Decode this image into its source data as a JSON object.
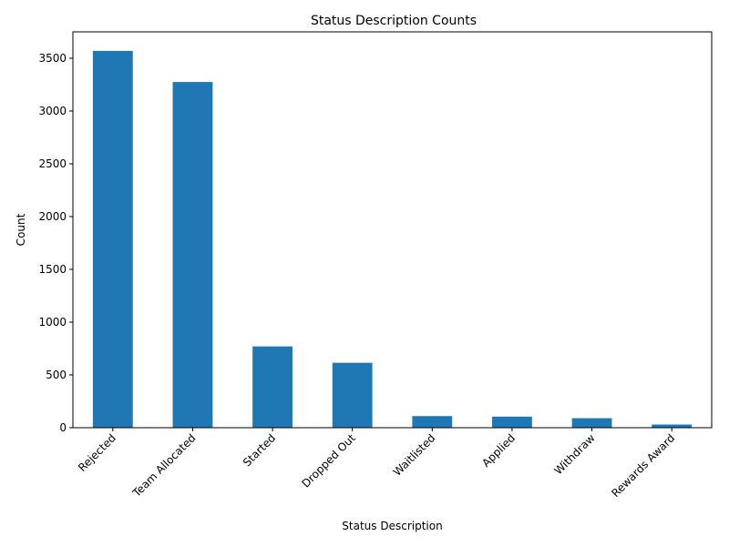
{
  "chart_data": {
    "type": "bar",
    "title": "Status Description Counts",
    "xlabel": "Status Description",
    "ylabel": "Count",
    "categories": [
      "Rejected",
      "Team Allocated",
      "Started",
      "Dropped Out",
      "Waitlisted",
      "Applied",
      "Withdraw",
      "Rewards Award"
    ],
    "values": [
      3570,
      3275,
      770,
      615,
      110,
      105,
      90,
      30
    ],
    "ylim": [
      0,
      3750
    ],
    "yticks": [
      0,
      500,
      1000,
      1500,
      2000,
      2500,
      3000,
      3500
    ],
    "ytick_labels": [
      "0",
      "500",
      "1000",
      "1500",
      "2000",
      "2500",
      "3000",
      "3500"
    ],
    "bar_color": "#1f77b4",
    "grid": false,
    "legend": false
  }
}
